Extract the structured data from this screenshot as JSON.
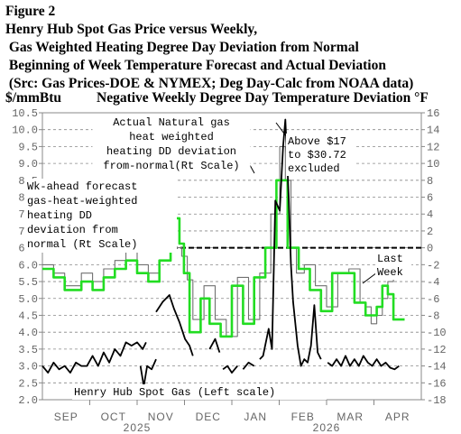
{
  "header": {
    "figure_label": "Figure 2",
    "title_lines": [
      "Henry Hub Spot Gas Price versus Weekly,",
      " Gas Weighted Heating Degree Day Deviation from Normal",
      " Beginning of Week Temperature Forecast and Actual Deviation",
      " (Src: Gas Prices-DOE & NYMEX; Deg Day-Calc from NOAA data)"
    ],
    "left_axis_title": "$/mmBtu",
    "right_axis_title": "Negative Weekly Degree Day Temperature Deviation °F"
  },
  "colors": {
    "spot_price": "#000000",
    "actual_deviation": "#707070",
    "forecast_deviation": "#22dd22",
    "zero_line": "#000000",
    "grid": "#888888"
  },
  "chart_data": {
    "type": "line",
    "x_axis": {
      "months": [
        "SEP",
        "OCT",
        "NOV",
        "DEC",
        "JAN",
        "FEB",
        "MAR",
        "APR"
      ],
      "year_labels": [
        "2025",
        "2026"
      ],
      "range_weeks": [
        0,
        34
      ]
    },
    "y_left": {
      "ylim": [
        2.0,
        10.5
      ],
      "ticks": [
        "2.0",
        "2.5",
        "3.0",
        "3.5",
        "4.0",
        "4.5",
        "5.0",
        "5.5",
        "6.0",
        "6.5",
        "7.0",
        "7.5",
        "8.0",
        "8.5",
        "9.0",
        "9.5",
        "10.0",
        "10.5"
      ]
    },
    "y_right": {
      "ylim": [
        -18,
        16
      ],
      "ticks": [
        "-18",
        "-16",
        "-14",
        "-12",
        "-10",
        "-8",
        "-6",
        "-4",
        "-2",
        "0",
        "2",
        "4",
        "6",
        "8",
        "10",
        "12",
        "14",
        "16"
      ]
    },
    "grid": true,
    "zero_line_right": 0,
    "series": [
      {
        "key": "spot",
        "axis": "left",
        "segments": [
          [
            [
              0,
              3.0
            ],
            [
              0.5,
              2.8
            ],
            [
              1,
              3.1
            ],
            [
              1.5,
              2.9
            ],
            [
              2,
              3.0
            ],
            [
              2.5,
              2.8
            ],
            [
              3,
              3.1
            ],
            [
              3.5,
              3.0
            ],
            [
              4,
              3.0
            ],
            [
              4.5,
              3.3
            ],
            [
              5,
              3.0
            ],
            [
              5.5,
              3.4
            ],
            [
              6,
              3.1
            ],
            [
              6.5,
              3.5
            ],
            [
              7,
              3.3
            ],
            [
              7.5,
              3.7
            ],
            [
              8,
              3.6
            ],
            [
              8.5,
              3.7
            ],
            [
              9,
              3.5
            ],
            [
              9.3,
              3.7
            ]
          ],
          [
            [
              8.8,
              3.0
            ],
            [
              9.1,
              2.4
            ],
            [
              9.4,
              3.0
            ],
            [
              9.8,
              2.9
            ],
            [
              10.2,
              3.2
            ]
          ],
          [
            [
              10.2,
              4.6
            ],
            [
              10.8,
              4.9
            ],
            [
              11.4,
              5.1
            ],
            [
              11.8,
              4.7
            ],
            [
              12.3,
              4.3
            ],
            [
              12.8,
              3.8
            ],
            [
              13.2,
              3.6
            ],
            [
              13.5,
              3.3
            ]
          ],
          [
            [
              15,
              3.5
            ],
            [
              15.5,
              3.8
            ],
            [
              15.9,
              3.4
            ]
          ],
          [
            [
              16.2,
              2.9
            ],
            [
              16.6,
              3.0
            ],
            [
              17,
              2.8
            ],
            [
              17.5,
              3.0
            ]
          ],
          [
            [
              18,
              2.9
            ],
            [
              18.5,
              3.1
            ],
            [
              19,
              3.0
            ]
          ],
          [
            [
              19.5,
              3.2
            ],
            [
              19.8,
              3.3
            ],
            [
              20.3,
              4.1
            ],
            [
              20.6,
              3.5
            ],
            [
              20.9,
              7.9
            ],
            [
              21.3,
              7.6
            ],
            [
              21.6,
              9.5
            ],
            [
              21.8,
              10.3
            ],
            [
              22.1,
              8.0
            ],
            [
              22.3,
              6.0
            ],
            [
              22.5,
              4.9
            ],
            [
              22.9,
              3.6
            ],
            [
              23.2,
              3.0
            ],
            [
              23.5,
              3.2
            ],
            [
              23.8,
              3.1
            ],
            [
              24.1,
              3.6
            ],
            [
              24.4,
              4.8
            ],
            [
              24.7,
              3.4
            ],
            [
              25,
              3.2
            ]
          ],
          [
            [
              25.6,
              3.1
            ],
            [
              26,
              3.0
            ],
            [
              26.4,
              3.2
            ],
            [
              26.8,
              3.0
            ],
            [
              27.2,
              3.3
            ],
            [
              27.6,
              3.0
            ],
            [
              28,
              3.2
            ],
            [
              28.4,
              3.0
            ],
            [
              28.8,
              3.3
            ],
            [
              29.2,
              3.1
            ],
            [
              29.6,
              3.0
            ],
            [
              30,
              3.2
            ],
            [
              30.4,
              3.0
            ],
            [
              30.8,
              3.1
            ],
            [
              31.2,
              2.95
            ],
            [
              31.6,
              2.9
            ],
            [
              32,
              3.0
            ]
          ]
        ]
      },
      {
        "key": "actual",
        "axis": "right",
        "segments": [
          [
            [
              0,
              -2
            ],
            [
              1,
              -2
            ],
            [
              1,
              -3
            ],
            [
              2,
              -3
            ],
            [
              2,
              -4.5
            ],
            [
              3.5,
              -4.5
            ],
            [
              3.5,
              -3
            ],
            [
              4.5,
              -3
            ],
            [
              4.5,
              -4
            ],
            [
              5.5,
              -4
            ],
            [
              5.5,
              -2.5
            ],
            [
              6.5,
              -2.5
            ],
            [
              6.5,
              -1.5
            ],
            [
              7.5,
              -1.5
            ],
            [
              7.5,
              -0.5
            ],
            [
              8.5,
              -0.5
            ],
            [
              8.5,
              -2
            ],
            [
              9.5,
              -2
            ],
            [
              9.5,
              -3
            ],
            [
              10.5,
              -3
            ],
            [
              10.5,
              -1.5
            ],
            [
              11.5,
              -1.5
            ],
            [
              11.5,
              0
            ],
            [
              12.5,
              0
            ],
            [
              12.5,
              -1
            ],
            [
              13,
              -1
            ],
            [
              13,
              -3.8
            ],
            [
              13.5,
              -3.8
            ],
            [
              13.5,
              -8.5
            ],
            [
              14.5,
              -8.5
            ],
            [
              14.5,
              -4.5
            ],
            [
              15.5,
              -4.5
            ],
            [
              15.5,
              -8.5
            ],
            [
              16.5,
              -8.5
            ],
            [
              16.5,
              -10.5
            ],
            [
              17.5,
              -10.5
            ],
            [
              17.5,
              -3.5
            ],
            [
              18.5,
              -3.5
            ],
            [
              18.5,
              -8.5
            ],
            [
              19.5,
              -8.5
            ],
            [
              19.5,
              -3
            ],
            [
              20.5,
              -3
            ],
            [
              20.5,
              4
            ],
            [
              21.3,
              4
            ],
            [
              21.3,
              12
            ],
            [
              21.8,
              12
            ],
            [
              21.8,
              8
            ],
            [
              22.3,
              8
            ],
            [
              22.3,
              0
            ],
            [
              22.8,
              0
            ],
            [
              22.8,
              -3
            ],
            [
              23.5,
              -3
            ],
            [
              23.5,
              -2
            ],
            [
              24.5,
              -2
            ],
            [
              24.5,
              -4.5
            ],
            [
              25.5,
              -4.5
            ],
            [
              25.5,
              -7
            ],
            [
              26.5,
              -7
            ],
            [
              26.5,
              -3
            ],
            [
              27.5,
              -3
            ],
            [
              27.5,
              -2.5
            ],
            [
              28.5,
              -2.5
            ],
            [
              28.5,
              -6.5
            ],
            [
              29,
              -6.5
            ],
            [
              29,
              -7
            ],
            [
              29.5,
              -7
            ],
            [
              29.5,
              -9
            ],
            [
              30,
              -9
            ],
            [
              30,
              -8
            ],
            [
              30.5,
              -8
            ],
            [
              30.5,
              -6
            ],
            [
              31,
              -6
            ],
            [
              31,
              -4
            ],
            [
              31.5,
              -4
            ],
            [
              31.5,
              -3.5
            ],
            [
              32,
              -3.5
            ]
          ]
        ]
      },
      {
        "key": "forecast",
        "axis": "right",
        "segments": [
          [
            [
              0,
              -2.5
            ],
            [
              1,
              -2.5
            ],
            [
              1,
              -3.5
            ],
            [
              2,
              -3.5
            ],
            [
              2,
              -5
            ],
            [
              3.5,
              -5
            ],
            [
              3.5,
              -4
            ],
            [
              4.5,
              -4
            ],
            [
              4.5,
              -5
            ],
            [
              5.5,
              -5
            ],
            [
              5.5,
              -3.5
            ],
            [
              6.5,
              -3.5
            ],
            [
              6.5,
              -2.5
            ],
            [
              7.5,
              -2.5
            ],
            [
              7.5,
              -1.5
            ],
            [
              8.5,
              -1.5
            ],
            [
              8.5,
              -3
            ],
            [
              9.5,
              -3
            ],
            [
              9.5,
              -4
            ],
            [
              10.5,
              -4
            ],
            [
              10.5,
              -1.5
            ],
            [
              11.5,
              -1.5
            ],
            [
              11.5,
              3.5
            ],
            [
              12.3,
              3.5
            ],
            [
              12.3,
              0.5
            ],
            [
              12.7,
              0.5
            ],
            [
              12.7,
              -3
            ],
            [
              13.2,
              -3
            ],
            [
              13.2,
              -10
            ],
            [
              14.2,
              -10
            ],
            [
              14.2,
              -6
            ],
            [
              15,
              -6
            ],
            [
              15,
              -9
            ],
            [
              16,
              -9
            ],
            [
              16,
              -10.5
            ],
            [
              17,
              -10.5
            ],
            [
              17,
              -4.5
            ],
            [
              18,
              -4.5
            ],
            [
              18,
              -9
            ],
            [
              19,
              -9
            ],
            [
              19,
              -3.5
            ],
            [
              20,
              -3.5
            ],
            [
              20,
              0
            ],
            [
              21,
              0
            ],
            [
              21,
              8
            ],
            [
              22,
              8
            ],
            [
              22,
              0
            ],
            [
              23,
              0
            ],
            [
              23,
              -2.5
            ],
            [
              24,
              -2.5
            ],
            [
              24,
              -5
            ],
            [
              25,
              -5
            ],
            [
              25,
              -7.5
            ],
            [
              26,
              -7.5
            ],
            [
              26,
              -3
            ],
            [
              27,
              -3
            ],
            [
              27,
              -3
            ],
            [
              28,
              -3
            ],
            [
              28,
              -6.5
            ],
            [
              29,
              -6.5
            ],
            [
              29,
              -8
            ],
            [
              30,
              -8
            ],
            [
              30,
              -7
            ],
            [
              30.5,
              -7
            ],
            [
              30.5,
              -4.5
            ],
            [
              31,
              -4.5
            ],
            [
              31,
              -5.5
            ],
            [
              31.5,
              -5.5
            ],
            [
              31.5,
              -8.5
            ],
            [
              32.5,
              -8.5
            ]
          ]
        ]
      }
    ],
    "annotations": [
      {
        "key": "actual_label",
        "lines": [
          "Actual Natural gas",
          "heat weighted",
          "heating DD deviation",
          "from-normal(Rt Scale)"
        ]
      },
      {
        "key": "forecast_label",
        "lines": [
          "Wk-ahead forecast",
          "gas-heat-weighted",
          "heating DD",
          "deviation from",
          "normal (Rt Scale)"
        ]
      },
      {
        "key": "above_label",
        "lines": [
          "Above $17",
          "to $30.72",
          "excluded"
        ]
      },
      {
        "key": "last_week_label",
        "lines": [
          "Last",
          "Week"
        ]
      },
      {
        "key": "spot_label",
        "lines": [
          "Henry Hub Spot Gas (Left scale)"
        ]
      }
    ]
  }
}
